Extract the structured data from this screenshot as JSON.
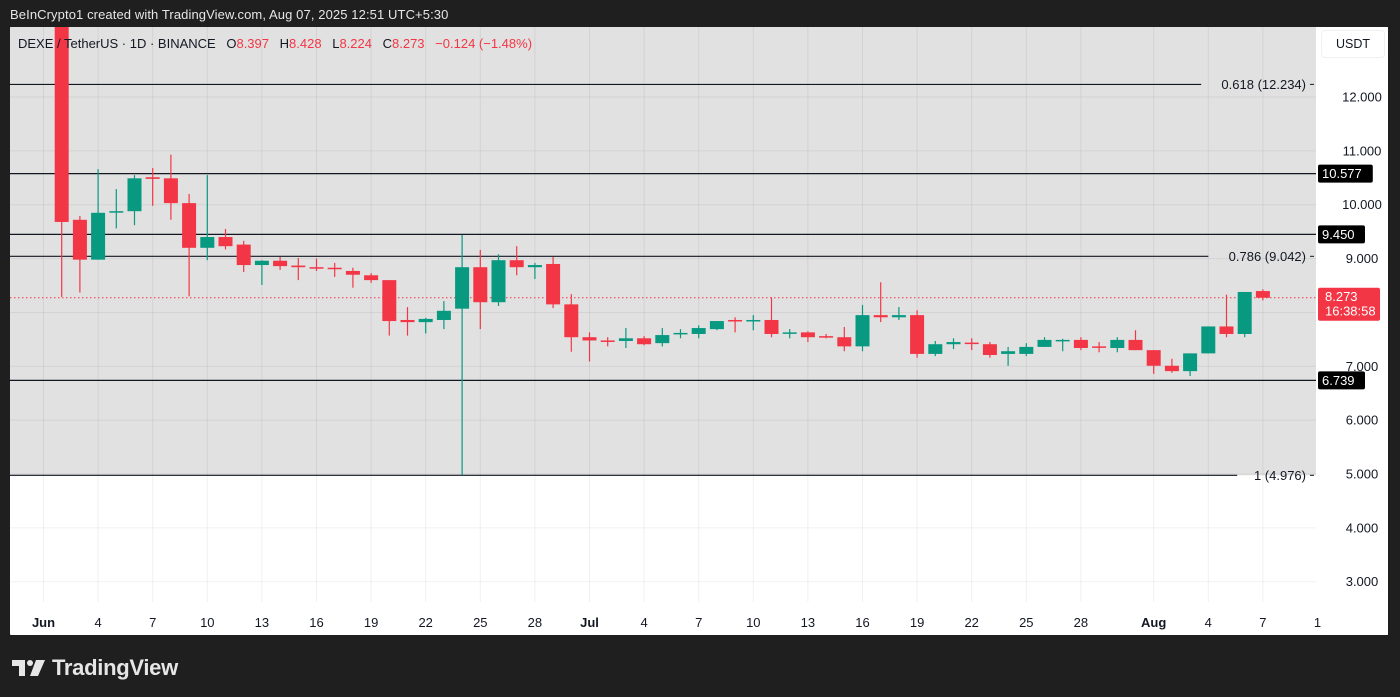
{
  "header": {
    "credit": "BeInCrypto1 created with TradingView.com, Aug 07, 2025 12:51 UTC+5:30"
  },
  "legend": {
    "symbol": "DEXE / TetherUS · 1D · BINANCE",
    "open_label": "O",
    "open": "8.397",
    "high_label": "H",
    "high": "8.428",
    "low_label": "L",
    "low": "8.224",
    "close_label": "C",
    "close": "8.273",
    "change": "−0.124 (−1.48%)"
  },
  "axis": {
    "currency": "USDT",
    "countdown": "16:38:58"
  },
  "branding": {
    "logo_text": "TradingView"
  },
  "colors": {
    "up": "#089981",
    "down": "#f23645",
    "plot_bg": "#e1e1e1",
    "line": "#131722"
  },
  "chart_data": {
    "type": "candlestick",
    "title": "DEXE / TetherUS · 1D · BINANCE",
    "xlabel": "",
    "ylabel": "USDT",
    "ylim": [
      2.45,
      13.0
    ],
    "y_ticks": [
      3.0,
      4.0,
      5.0,
      6.0,
      7.0,
      8.0,
      9.0,
      10.0,
      11.0,
      12.0
    ],
    "y_tick_labels": [
      "3.000",
      "4.000",
      "5.000",
      "6.000",
      "7.000",
      "",
      "9.000",
      "10.000",
      "11.000",
      "12.000"
    ],
    "x_tick_labels": [
      {
        "label": "Jun",
        "day": 1,
        "bold": true
      },
      {
        "label": "4",
        "day": 4
      },
      {
        "label": "7",
        "day": 7
      },
      {
        "label": "10",
        "day": 10
      },
      {
        "label": "13",
        "day": 13
      },
      {
        "label": "16",
        "day": 16
      },
      {
        "label": "19",
        "day": 19
      },
      {
        "label": "22",
        "day": 22
      },
      {
        "label": "25",
        "day": 25
      },
      {
        "label": "28",
        "day": 28
      },
      {
        "label": "Jul",
        "day": 31,
        "bold": true
      },
      {
        "label": "4",
        "day": 34
      },
      {
        "label": "7",
        "day": 37
      },
      {
        "label": "10",
        "day": 40
      },
      {
        "label": "13",
        "day": 43
      },
      {
        "label": "16",
        "day": 46
      },
      {
        "label": "19",
        "day": 49
      },
      {
        "label": "22",
        "day": 52
      },
      {
        "label": "25",
        "day": 55
      },
      {
        "label": "28",
        "day": 58
      },
      {
        "label": "Aug",
        "day": 62,
        "bold": true
      },
      {
        "label": "4",
        "day": 65
      },
      {
        "label": "7",
        "day": 68
      },
      {
        "label": "1",
        "day": 71
      }
    ],
    "horizontal_lines": [
      {
        "price": 12.234,
        "label": "0.618 (12.234)",
        "type": "fib"
      },
      {
        "price": 10.577,
        "label": "10.577",
        "type": "level"
      },
      {
        "price": 9.45,
        "label": "9.450",
        "type": "level"
      },
      {
        "price": 9.042,
        "label": "0.786 (9.042)",
        "type": "fib"
      },
      {
        "price": 6.739,
        "label": "6.739",
        "type": "level"
      },
      {
        "price": 4.976,
        "label": "1 (4.976)",
        "type": "fib"
      }
    ],
    "last_price": {
      "value": 8.273,
      "label": "8.273"
    },
    "shaded_range": [
      4.976,
      13.0
    ],
    "candles": [
      {
        "date": "Jun 2",
        "o": 13.6,
        "h": 14.0,
        "l": 8.29,
        "c": 9.68
      },
      {
        "date": "Jun 3",
        "o": 9.72,
        "h": 9.79,
        "l": 8.37,
        "c": 8.98
      },
      {
        "date": "Jun 4",
        "o": 8.98,
        "h": 10.66,
        "l": 8.98,
        "c": 9.85
      },
      {
        "date": "Jun 5",
        "o": 9.86,
        "h": 10.29,
        "l": 9.56,
        "c": 9.88
      },
      {
        "date": "Jun 6",
        "o": 9.88,
        "h": 10.55,
        "l": 9.62,
        "c": 10.49
      },
      {
        "date": "Jun 7",
        "o": 10.51,
        "h": 10.68,
        "l": 9.98,
        "c": 10.48
      },
      {
        "date": "Jun 8",
        "o": 10.49,
        "h": 10.93,
        "l": 9.72,
        "c": 10.03
      },
      {
        "date": "Jun 9",
        "o": 10.03,
        "h": 10.2,
        "l": 8.3,
        "c": 9.2
      },
      {
        "date": "Jun 10",
        "o": 9.2,
        "h": 10.55,
        "l": 8.97,
        "c": 9.4
      },
      {
        "date": "Jun 11",
        "o": 9.4,
        "h": 9.55,
        "l": 9.17,
        "c": 9.23
      },
      {
        "date": "Jun 12",
        "o": 9.26,
        "h": 9.33,
        "l": 8.75,
        "c": 8.88
      },
      {
        "date": "Jun 13",
        "o": 8.88,
        "h": 8.97,
        "l": 8.51,
        "c": 8.96
      },
      {
        "date": "Jun 14",
        "o": 8.96,
        "h": 9.03,
        "l": 8.79,
        "c": 8.86
      },
      {
        "date": "Jun 15",
        "o": 8.87,
        "h": 9.01,
        "l": 8.6,
        "c": 8.84
      },
      {
        "date": "Jun 16",
        "o": 8.84,
        "h": 9.0,
        "l": 8.77,
        "c": 8.82
      },
      {
        "date": "Jun 17",
        "o": 8.83,
        "h": 8.92,
        "l": 8.66,
        "c": 8.81
      },
      {
        "date": "Jun 18",
        "o": 8.77,
        "h": 8.83,
        "l": 8.46,
        "c": 8.7
      },
      {
        "date": "Jun 19",
        "o": 8.69,
        "h": 8.73,
        "l": 8.55,
        "c": 8.6
      },
      {
        "date": "Jun 20",
        "o": 8.6,
        "h": 8.6,
        "l": 7.57,
        "c": 7.84
      },
      {
        "date": "Jun 21",
        "o": 7.86,
        "h": 8.1,
        "l": 7.57,
        "c": 7.82
      },
      {
        "date": "Jun 22",
        "o": 7.82,
        "h": 7.9,
        "l": 7.61,
        "c": 7.88
      },
      {
        "date": "Jun 23",
        "o": 7.86,
        "h": 8.21,
        "l": 7.69,
        "c": 8.03
      },
      {
        "date": "Jun 24",
        "o": 8.07,
        "h": 9.44,
        "l": 4.98,
        "c": 8.84
      },
      {
        "date": "Jun 25",
        "o": 8.84,
        "h": 9.16,
        "l": 7.69,
        "c": 8.19
      },
      {
        "date": "Jun 26",
        "o": 8.19,
        "h": 9.08,
        "l": 8.12,
        "c": 8.97
      },
      {
        "date": "Jun 27",
        "o": 8.97,
        "h": 9.23,
        "l": 8.69,
        "c": 8.84
      },
      {
        "date": "Jun 28",
        "o": 8.84,
        "h": 8.92,
        "l": 8.62,
        "c": 8.88
      },
      {
        "date": "Jun 29",
        "o": 8.9,
        "h": 9.03,
        "l": 8.08,
        "c": 8.15
      },
      {
        "date": "Jun 30",
        "o": 8.15,
        "h": 8.34,
        "l": 7.27,
        "c": 7.54
      },
      {
        "date": "Jul 1",
        "o": 7.54,
        "h": 7.63,
        "l": 7.09,
        "c": 7.48
      },
      {
        "date": "Jul 2",
        "o": 7.48,
        "h": 7.54,
        "l": 7.37,
        "c": 7.47
      },
      {
        "date": "Jul 3",
        "o": 7.47,
        "h": 7.71,
        "l": 7.34,
        "c": 7.52
      },
      {
        "date": "Jul 4",
        "o": 7.52,
        "h": 7.56,
        "l": 7.39,
        "c": 7.41
      },
      {
        "date": "Jul 5",
        "o": 7.43,
        "h": 7.71,
        "l": 7.37,
        "c": 7.58
      },
      {
        "date": "Jul 6",
        "o": 7.6,
        "h": 7.69,
        "l": 7.52,
        "c": 7.62
      },
      {
        "date": "Jul 7",
        "o": 7.6,
        "h": 7.76,
        "l": 7.52,
        "c": 7.71
      },
      {
        "date": "Jul 8",
        "o": 7.69,
        "h": 7.84,
        "l": 7.67,
        "c": 7.84
      },
      {
        "date": "Jul 9",
        "o": 7.86,
        "h": 7.91,
        "l": 7.63,
        "c": 7.85
      },
      {
        "date": "Jul 10",
        "o": 7.84,
        "h": 7.95,
        "l": 7.67,
        "c": 7.86
      },
      {
        "date": "Jul 11",
        "o": 7.86,
        "h": 8.28,
        "l": 7.54,
        "c": 7.6
      },
      {
        "date": "Jul 12",
        "o": 7.61,
        "h": 7.69,
        "l": 7.52,
        "c": 7.63
      },
      {
        "date": "Jul 13",
        "o": 7.63,
        "h": 7.65,
        "l": 7.45,
        "c": 7.54
      },
      {
        "date": "Jul 14",
        "o": 7.56,
        "h": 7.6,
        "l": 7.52,
        "c": 7.54
      },
      {
        "date": "Jul 15",
        "o": 7.54,
        "h": 7.73,
        "l": 7.28,
        "c": 7.37
      },
      {
        "date": "Jul 16",
        "o": 7.37,
        "h": 8.14,
        "l": 7.28,
        "c": 7.95
      },
      {
        "date": "Jul 17",
        "o": 7.95,
        "h": 8.56,
        "l": 7.82,
        "c": 7.91
      },
      {
        "date": "Jul 18",
        "o": 7.91,
        "h": 8.1,
        "l": 7.86,
        "c": 7.95
      },
      {
        "date": "Jul 19",
        "o": 7.95,
        "h": 8.04,
        "l": 7.16,
        "c": 7.23
      },
      {
        "date": "Jul 20",
        "o": 7.23,
        "h": 7.47,
        "l": 7.19,
        "c": 7.41
      },
      {
        "date": "Jul 21",
        "o": 7.41,
        "h": 7.52,
        "l": 7.32,
        "c": 7.45
      },
      {
        "date": "Jul 22",
        "o": 7.44,
        "h": 7.52,
        "l": 7.3,
        "c": 7.42
      },
      {
        "date": "Jul 23",
        "o": 7.41,
        "h": 7.45,
        "l": 7.16,
        "c": 7.21
      },
      {
        "date": "Jul 24",
        "o": 7.23,
        "h": 7.36,
        "l": 7.01,
        "c": 7.28
      },
      {
        "date": "Jul 25",
        "o": 7.23,
        "h": 7.43,
        "l": 7.19,
        "c": 7.36
      },
      {
        "date": "Jul 26",
        "o": 7.36,
        "h": 7.54,
        "l": 7.36,
        "c": 7.49
      },
      {
        "date": "Jul 27",
        "o": 7.48,
        "h": 7.51,
        "l": 7.28,
        "c": 7.49
      },
      {
        "date": "Jul 28",
        "o": 7.49,
        "h": 7.54,
        "l": 7.3,
        "c": 7.34
      },
      {
        "date": "Jul 29",
        "o": 7.37,
        "h": 7.45,
        "l": 7.26,
        "c": 7.36
      },
      {
        "date": "Jul 30",
        "o": 7.34,
        "h": 7.54,
        "l": 7.26,
        "c": 7.49
      },
      {
        "date": "Jul 31",
        "o": 7.49,
        "h": 7.67,
        "l": 7.3,
        "c": 7.3
      },
      {
        "date": "Aug 1",
        "o": 7.3,
        "h": 7.3,
        "l": 6.86,
        "c": 7.01
      },
      {
        "date": "Aug 2",
        "o": 7.01,
        "h": 7.14,
        "l": 6.88,
        "c": 6.91
      },
      {
        "date": "Aug 3",
        "o": 6.91,
        "h": 7.24,
        "l": 6.82,
        "c": 7.24
      },
      {
        "date": "Aug 4",
        "o": 7.24,
        "h": 7.74,
        "l": 7.24,
        "c": 7.74
      },
      {
        "date": "Aug 5",
        "o": 7.74,
        "h": 8.33,
        "l": 7.54,
        "c": 7.6
      },
      {
        "date": "Aug 6",
        "o": 7.6,
        "h": 8.38,
        "l": 7.54,
        "c": 8.38
      },
      {
        "date": "Aug 7",
        "o": 8.397,
        "h": 8.428,
        "l": 8.224,
        "c": 8.273
      }
    ]
  }
}
